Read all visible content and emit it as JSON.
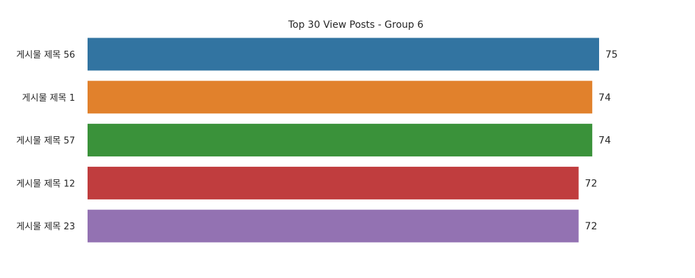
{
  "chart_data": {
    "type": "bar",
    "orientation": "horizontal",
    "title": "Top 30 View Posts - Group 6",
    "xlabel": "",
    "ylabel": "",
    "categories": [
      "게시물 제목 56",
      "게시물 제목 1",
      "게시물 제목 57",
      "게시물 제목 12",
      "게시물 제목 23"
    ],
    "values": [
      75,
      74,
      74,
      72,
      72
    ],
    "value_labels": [
      "75",
      "74",
      "74",
      "72",
      "72"
    ],
    "colors": [
      "#3274a1",
      "#e1812c",
      "#3a923a",
      "#c03d3e",
      "#9372b2"
    ],
    "xlim": [
      0,
      75
    ],
    "grid": false,
    "legend": false
  }
}
